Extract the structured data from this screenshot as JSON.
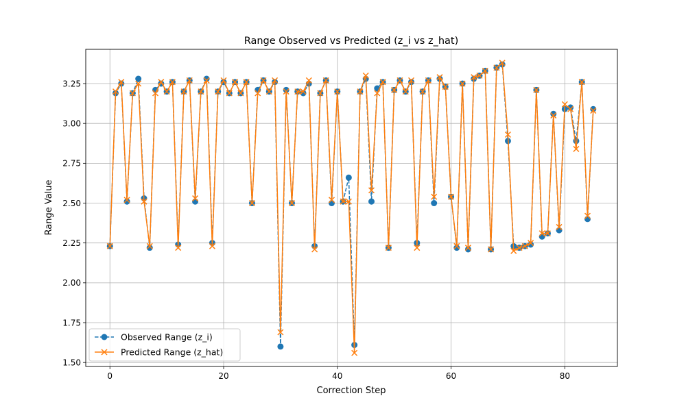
{
  "chart_data": {
    "type": "line",
    "title": "Range Observed vs Predicted (z_i vs z_hat)",
    "xlabel": "Correction Step",
    "ylabel": "Range Value",
    "xlim": [
      -4.25,
      89.25
    ],
    "ylim": [
      1.475,
      3.465
    ],
    "xticks": [
      0,
      20,
      40,
      60,
      80
    ],
    "yticks": [
      1.5,
      1.75,
      2.0,
      2.25,
      2.5,
      2.75,
      3.0,
      3.25
    ],
    "ytick_labels": [
      "1.50",
      "1.75",
      "2.00",
      "2.25",
      "2.50",
      "2.75",
      "3.00",
      "3.25"
    ],
    "grid": true,
    "legend_position": "lower-left",
    "series": [
      {
        "name": "Observed Range (z_i)",
        "color": "#1f77b4",
        "marker": "circle",
        "linestyle": "dashed",
        "x": [
          0,
          1,
          2,
          3,
          4,
          5,
          6,
          7,
          8,
          9,
          10,
          11,
          12,
          13,
          14,
          15,
          16,
          17,
          18,
          19,
          20,
          21,
          22,
          23,
          24,
          25,
          26,
          27,
          28,
          29,
          30,
          31,
          32,
          33,
          34,
          35,
          36,
          37,
          38,
          39,
          40,
          41,
          42,
          43,
          44,
          45,
          46,
          47,
          48,
          49,
          50,
          51,
          52,
          53,
          54,
          55,
          56,
          57,
          58,
          59,
          60,
          61,
          62,
          63,
          64,
          65,
          66,
          67,
          68,
          69,
          70,
          71,
          72,
          73,
          74,
          75,
          76,
          77,
          78,
          79,
          80,
          81,
          82,
          83,
          84,
          85
        ],
        "values": [
          2.23,
          3.19,
          3.25,
          2.51,
          3.19,
          3.28,
          2.53,
          2.22,
          3.21,
          3.25,
          3.2,
          3.26,
          2.24,
          3.2,
          3.27,
          2.51,
          3.2,
          3.28,
          2.25,
          3.2,
          3.26,
          3.19,
          3.26,
          3.19,
          3.26,
          2.5,
          3.21,
          3.27,
          3.2,
          3.26,
          1.6,
          3.21,
          2.5,
          3.2,
          3.19,
          3.25,
          2.23,
          3.19,
          3.27,
          2.5,
          3.2,
          2.51,
          2.66,
          1.61,
          3.2,
          3.28,
          2.51,
          3.22,
          3.26,
          2.22,
          3.21,
          3.27,
          3.2,
          3.26,
          2.25,
          3.2,
          3.27,
          2.5,
          3.28,
          3.23,
          2.54,
          2.22,
          3.25,
          2.21,
          3.28,
          3.3,
          3.33,
          2.21,
          3.35,
          3.37,
          2.89,
          2.23,
          2.22,
          2.23,
          2.24,
          3.21,
          2.29,
          2.31,
          3.06,
          2.33,
          3.09,
          3.1,
          2.89,
          3.26,
          2.4,
          3.09
        ]
      },
      {
        "name": "Predicted Range (z_hat)",
        "color": "#ff7f0e",
        "marker": "x",
        "linestyle": "solid",
        "x": [
          0,
          1,
          2,
          3,
          4,
          5,
          6,
          7,
          8,
          9,
          10,
          11,
          12,
          13,
          14,
          15,
          16,
          17,
          18,
          19,
          20,
          21,
          22,
          23,
          24,
          25,
          26,
          27,
          28,
          29,
          30,
          31,
          32,
          33,
          34,
          35,
          36,
          37,
          38,
          39,
          40,
          41,
          42,
          43,
          44,
          45,
          46,
          47,
          48,
          49,
          50,
          51,
          52,
          53,
          54,
          55,
          56,
          57,
          58,
          59,
          60,
          61,
          62,
          63,
          64,
          65,
          66,
          67,
          68,
          69,
          70,
          71,
          72,
          73,
          74,
          75,
          76,
          77,
          78,
          79,
          80,
          81,
          82,
          83,
          84,
          85
        ],
        "values": [
          2.23,
          3.2,
          3.26,
          2.52,
          3.19,
          3.25,
          2.51,
          2.23,
          3.19,
          3.26,
          3.2,
          3.26,
          2.22,
          3.2,
          3.27,
          2.53,
          3.2,
          3.27,
          2.23,
          3.2,
          3.27,
          3.19,
          3.26,
          3.19,
          3.26,
          2.5,
          3.19,
          3.27,
          3.2,
          3.27,
          1.69,
          3.2,
          2.5,
          3.2,
          3.2,
          3.27,
          2.21,
          3.19,
          3.27,
          2.52,
          3.2,
          2.51,
          2.51,
          1.56,
          3.2,
          3.3,
          2.58,
          3.19,
          3.26,
          2.22,
          3.21,
          3.27,
          3.2,
          3.27,
          2.22,
          3.2,
          3.27,
          2.54,
          3.29,
          3.23,
          2.54,
          2.23,
          3.25,
          2.22,
          3.29,
          3.3,
          3.33,
          2.21,
          3.35,
          3.38,
          2.93,
          2.2,
          2.22,
          2.23,
          2.25,
          3.21,
          2.31,
          2.31,
          3.05,
          2.35,
          3.12,
          3.09,
          2.84,
          3.26,
          2.42,
          3.08
        ]
      }
    ]
  }
}
